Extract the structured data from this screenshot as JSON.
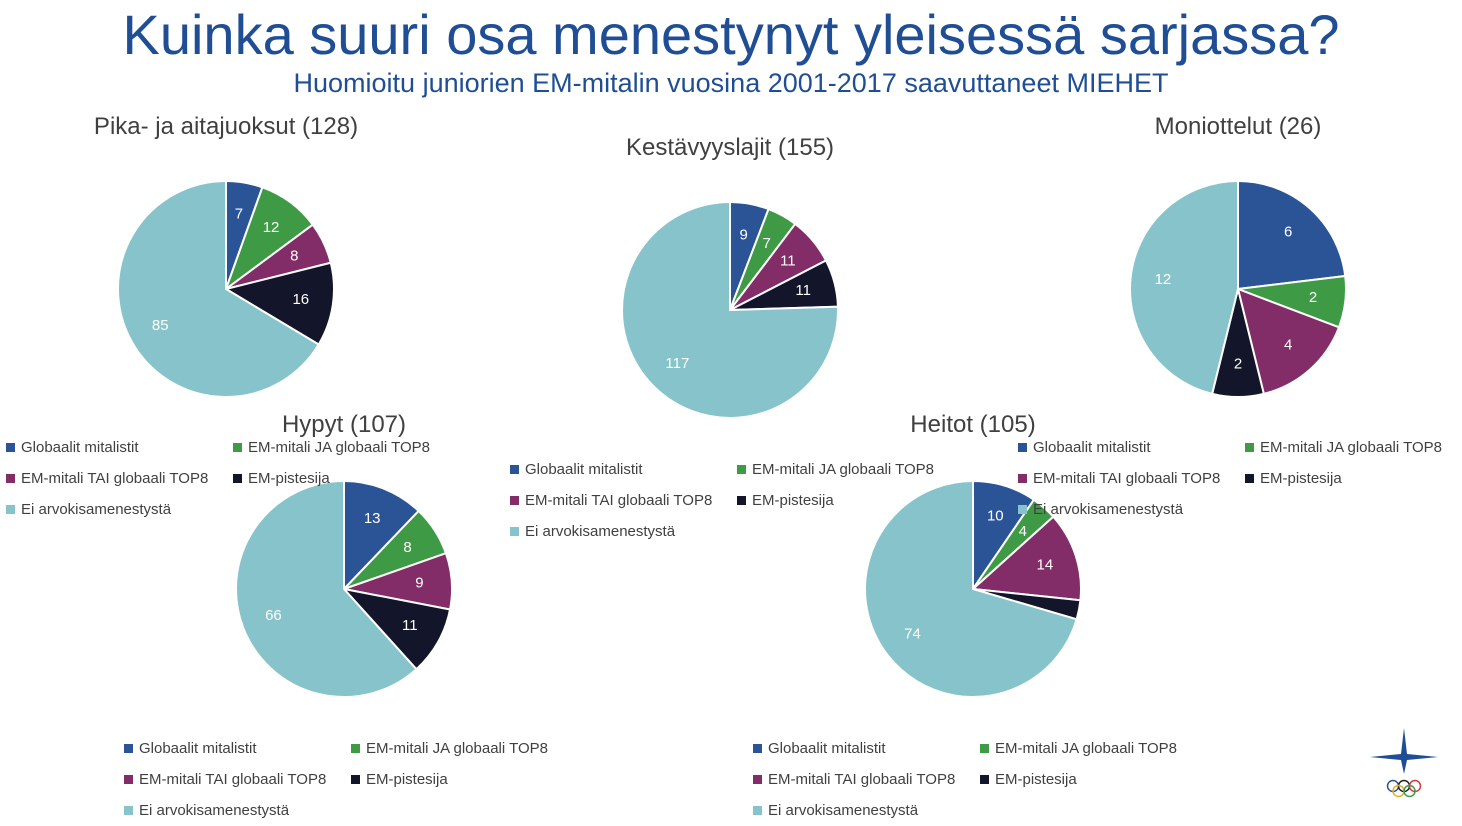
{
  "page": {
    "title": "Kuinka suuri osa menestynyt yleisessä sarjassa?",
    "subtitle": "Huomioitu juniorien EM-mitalin vuosina 2001-2017 saavuttaneet MIEHET"
  },
  "legend": {
    "labels": [
      "Globaalit mitalistit",
      "EM-mitali JA globaali TOP8",
      "EM-mitali TAI globaali TOP8",
      "EM-pistesija",
      "Ei arvokisamenestystä"
    ],
    "colors": [
      "#2a5496",
      "#3f9a45",
      "#822d68",
      "#13162a",
      "#87c3ca"
    ]
  },
  "chart_data": [
    {
      "type": "pie",
      "title": "Pika- ja aitajuoksut (128)",
      "categories": [
        "Globaalit mitalistit",
        "EM-mitali JA globaali TOP8",
        "EM-mitali TAI globaali TOP8",
        "EM-pistesija",
        "Ei arvokisamenestystä"
      ],
      "values": [
        7,
        12,
        8,
        16,
        85
      ],
      "data_labels": [
        "7",
        "12",
        "8",
        "16",
        "85"
      ]
    },
    {
      "type": "pie",
      "title": "Kestävyyslajit (155)",
      "categories": [
        "Globaalit mitalistit",
        "EM-mitali JA globaali TOP8",
        "EM-mitali TAI globaali TOP8",
        "EM-pistesija",
        "Ei arvokisamenestystä"
      ],
      "values": [
        9,
        7,
        11,
        11,
        117
      ],
      "data_labels": [
        "9",
        "7",
        "11",
        "11",
        "117"
      ]
    },
    {
      "type": "pie",
      "title": "Moniottelut (26)",
      "categories": [
        "Globaalit mitalistit",
        "EM-mitali JA globaali TOP8",
        "EM-mitali TAI globaali TOP8",
        "EM-pistesija",
        "Ei arvokisamenestystä"
      ],
      "values": [
        6,
        2,
        4,
        2,
        12
      ],
      "data_labels": [
        "6",
        "2",
        "4",
        "2",
        "12"
      ]
    },
    {
      "type": "pie",
      "title": "Hypyt (107)",
      "categories": [
        "Globaalit mitalistit",
        "EM-mitali JA globaali TOP8",
        "EM-mitali TAI globaali TOP8",
        "EM-pistesija",
        "Ei arvokisamenestystä"
      ],
      "values": [
        13,
        8,
        9,
        11,
        66
      ],
      "data_labels": [
        "13",
        "8",
        "9",
        "11",
        "66"
      ]
    },
    {
      "type": "pie",
      "title": "Heitot (105)",
      "categories": [
        "Globaalit mitalistit",
        "EM-mitali JA globaali TOP8",
        "EM-mitali TAI globaali TOP8",
        "EM-pistesija",
        "Ei arvokisamenestystä"
      ],
      "values": [
        10,
        4,
        14,
        3,
        74
      ],
      "data_labels": [
        "10",
        "4",
        "14",
        "",
        "74"
      ]
    }
  ]
}
